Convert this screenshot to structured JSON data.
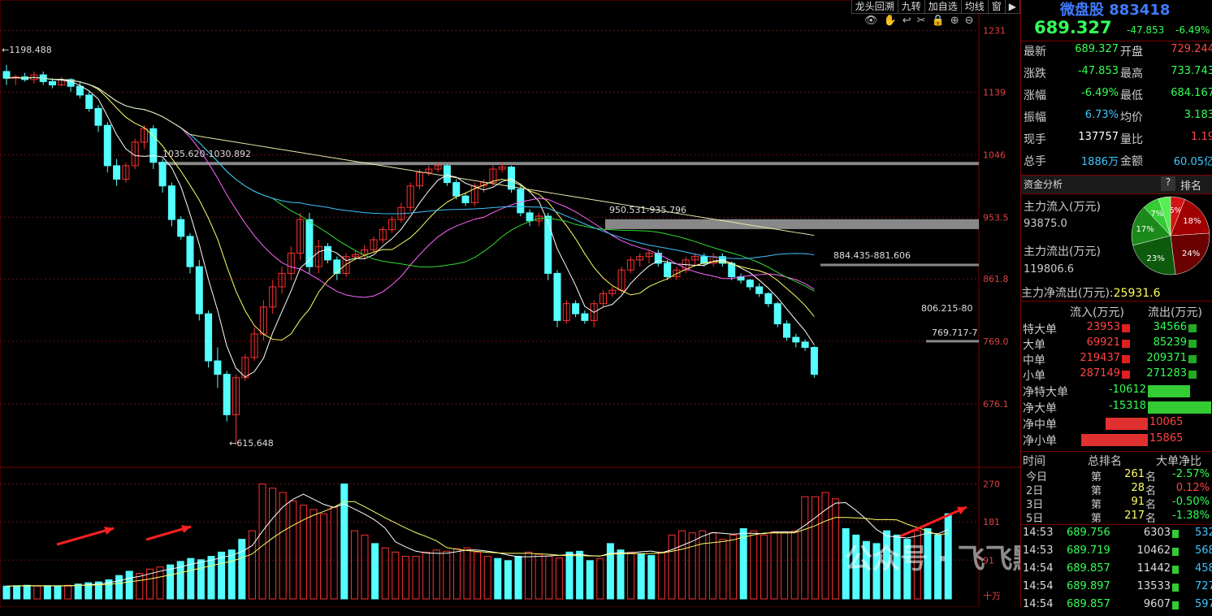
{
  "toolbar": {
    "items": [
      "龙头回溯",
      "九转",
      "加自选",
      "均线",
      "窗",
      "▶"
    ]
  },
  "chart_data": {
    "type": "candlestick",
    "price_axis": {
      "ticks": [
        "1231",
        "1139",
        "1046",
        "953.5",
        "861.8",
        "769.0",
        "676.1"
      ],
      "range": [
        600,
        1240
      ]
    },
    "volume_axis": {
      "ticks": [
        "270",
        "181",
        "91",
        "十万"
      ],
      "range": [
        0,
        290
      ]
    },
    "annotations": {
      "high": "1198.488",
      "low": "615.648",
      "zone1": "1035.620-1030.892",
      "zone2": "950.531-935.796",
      "zone3": "884.435-881.606",
      "zone4": "806.215-80",
      "zone5": "769.717-7"
    },
    "candles": [
      [
        1170,
        1180,
        1150,
        1160
      ],
      [
        1160,
        1165,
        1150,
        1162
      ],
      [
        1162,
        1168,
        1155,
        1158
      ],
      [
        1158,
        1170,
        1152,
        1165
      ],
      [
        1165,
        1170,
        1150,
        1155
      ],
      [
        1155,
        1160,
        1145,
        1150
      ],
      [
        1150,
        1162,
        1148,
        1158
      ],
      [
        1158,
        1160,
        1140,
        1148
      ],
      [
        1148,
        1155,
        1130,
        1135
      ],
      [
        1135,
        1140,
        1110,
        1115
      ],
      [
        1115,
        1120,
        1080,
        1090
      ],
      [
        1090,
        1095,
        1020,
        1030
      ],
      [
        1030,
        1040,
        1000,
        1010
      ],
      [
        1010,
        1035,
        1005,
        1030
      ],
      [
        1030,
        1070,
        1025,
        1065
      ],
      [
        1065,
        1090,
        1055,
        1085
      ],
      [
        1085,
        1090,
        1025,
        1035
      ],
      [
        1035,
        1040,
        990,
        1000
      ],
      [
        1000,
        1005,
        940,
        950
      ],
      [
        950,
        955,
        920,
        925
      ],
      [
        925,
        930,
        870,
        880
      ],
      [
        880,
        890,
        800,
        810
      ],
      [
        810,
        815,
        730,
        740
      ],
      [
        740,
        760,
        700,
        720
      ],
      [
        720,
        725,
        650,
        660
      ],
      [
        660,
        720,
        615,
        715
      ],
      [
        715,
        750,
        710,
        745
      ],
      [
        745,
        790,
        740,
        780
      ],
      [
        780,
        830,
        770,
        820
      ],
      [
        820,
        860,
        810,
        850
      ],
      [
        850,
        880,
        840,
        870
      ],
      [
        870,
        910,
        860,
        900
      ],
      [
        900,
        960,
        890,
        950
      ],
      [
        950,
        960,
        870,
        880
      ],
      [
        880,
        920,
        870,
        910
      ],
      [
        910,
        915,
        885,
        890
      ],
      [
        890,
        895,
        860,
        870
      ],
      [
        870,
        900,
        865,
        895
      ],
      [
        895,
        905,
        890,
        898
      ],
      [
        898,
        912,
        892,
        905
      ],
      [
        905,
        925,
        900,
        920
      ],
      [
        920,
        940,
        915,
        935
      ],
      [
        935,
        955,
        930,
        950
      ],
      [
        950,
        975,
        945,
        968
      ],
      [
        968,
        1005,
        962,
        1000
      ],
      [
        1000,
        1025,
        995,
        1020
      ],
      [
        1020,
        1030,
        1015,
        1025
      ],
      [
        1025,
        1035,
        1020,
        1030
      ],
      [
        1030,
        1032,
        1000,
        1005
      ],
      [
        1005,
        1010,
        980,
        985
      ],
      [
        985,
        990,
        970,
        975
      ],
      [
        975,
        1005,
        970,
        1000
      ],
      [
        1000,
        1010,
        990,
        1005
      ],
      [
        1005,
        1030,
        1000,
        1025
      ],
      [
        1025,
        1035,
        1020,
        1028
      ],
      [
        1028,
        1030,
        990,
        995
      ],
      [
        995,
        1000,
        955,
        960
      ],
      [
        960,
        965,
        940,
        948
      ],
      [
        948,
        960,
        940,
        955
      ],
      [
        955,
        960,
        860,
        870
      ],
      [
        870,
        875,
        790,
        800
      ],
      [
        800,
        830,
        795,
        825
      ],
      [
        825,
        830,
        805,
        810
      ],
      [
        810,
        815,
        795,
        800
      ],
      [
        800,
        830,
        790,
        825
      ],
      [
        825,
        845,
        820,
        840
      ],
      [
        840,
        850,
        835,
        845
      ],
      [
        845,
        880,
        840,
        875
      ],
      [
        875,
        895,
        870,
        890
      ],
      [
        890,
        900,
        880,
        895
      ],
      [
        895,
        905,
        885,
        900
      ],
      [
        900,
        905,
        880,
        885
      ],
      [
        885,
        890,
        860,
        865
      ],
      [
        865,
        880,
        860,
        875
      ],
      [
        875,
        895,
        870,
        890
      ],
      [
        890,
        900,
        880,
        895
      ],
      [
        895,
        900,
        880,
        885
      ],
      [
        885,
        900,
        880,
        895
      ],
      [
        895,
        900,
        880,
        885
      ],
      [
        885,
        888,
        860,
        865
      ],
      [
        865,
        870,
        855,
        860
      ],
      [
        860,
        862,
        845,
        850
      ],
      [
        850,
        855,
        835,
        840
      ],
      [
        840,
        842,
        820,
        825
      ],
      [
        825,
        828,
        790,
        795
      ],
      [
        795,
        800,
        770,
        775
      ],
      [
        775,
        780,
        760,
        768
      ],
      [
        768,
        772,
        755,
        760
      ],
      [
        760,
        762,
        715,
        720
      ]
    ],
    "volumes": [
      [
        30,
        "c"
      ],
      [
        31,
        "c"
      ],
      [
        32,
        "c"
      ],
      [
        30,
        "r"
      ],
      [
        31,
        "c"
      ],
      [
        30,
        "c"
      ],
      [
        32,
        "r"
      ],
      [
        35,
        "c"
      ],
      [
        38,
        "c"
      ],
      [
        40,
        "c"
      ],
      [
        45,
        "c"
      ],
      [
        55,
        "c"
      ],
      [
        65,
        "c"
      ],
      [
        60,
        "r"
      ],
      [
        70,
        "r"
      ],
      [
        75,
        "r"
      ],
      [
        80,
        "c"
      ],
      [
        88,
        "c"
      ],
      [
        95,
        "c"
      ],
      [
        92,
        "c"
      ],
      [
        100,
        "c"
      ],
      [
        110,
        "c"
      ],
      [
        115,
        "c"
      ],
      [
        140,
        "c"
      ],
      [
        160,
        "r"
      ],
      [
        270,
        "r"
      ],
      [
        260,
        "r"
      ],
      [
        250,
        "r"
      ],
      [
        230,
        "r"
      ],
      [
        220,
        "r"
      ],
      [
        210,
        "r"
      ],
      [
        200,
        "r"
      ],
      [
        215,
        "r"
      ],
      [
        270,
        "c"
      ],
      [
        160,
        "r"
      ],
      [
        150,
        "r"
      ],
      [
        130,
        "c"
      ],
      [
        120,
        "r"
      ],
      [
        110,
        "r"
      ],
      [
        100,
        "r"
      ],
      [
        100,
        "r"
      ],
      [
        110,
        "r"
      ],
      [
        115,
        "r"
      ],
      [
        112,
        "r"
      ],
      [
        118,
        "r"
      ],
      [
        120,
        "r"
      ],
      [
        110,
        "r"
      ],
      [
        100,
        "r"
      ],
      [
        95,
        "c"
      ],
      [
        90,
        "c"
      ],
      [
        100,
        "c"
      ],
      [
        110,
        "r"
      ],
      [
        105,
        "r"
      ],
      [
        100,
        "r"
      ],
      [
        96,
        "r"
      ],
      [
        110,
        "c"
      ],
      [
        112,
        "c"
      ],
      [
        90,
        "c"
      ],
      [
        95,
        "r"
      ],
      [
        130,
        "c"
      ],
      [
        115,
        "c"
      ],
      [
        110,
        "r"
      ],
      [
        105,
        "c"
      ],
      [
        102,
        "c"
      ],
      [
        110,
        "r"
      ],
      [
        150,
        "r"
      ],
      [
        160,
        "r"
      ],
      [
        155,
        "r"
      ],
      [
        160,
        "r"
      ],
      [
        155,
        "r"
      ],
      [
        140,
        "r"
      ],
      [
        150,
        "r"
      ],
      [
        165,
        "c"
      ],
      [
        160,
        "r"
      ],
      [
        150,
        "r"
      ],
      [
        158,
        "r"
      ],
      [
        155,
        "r"
      ],
      [
        160,
        "r"
      ],
      [
        240,
        "r"
      ],
      [
        240,
        "r"
      ],
      [
        250,
        "r"
      ],
      [
        235,
        "r"
      ],
      [
        165,
        "c"
      ],
      [
        150,
        "c"
      ],
      [
        135,
        "c"
      ],
      [
        130,
        "c"
      ],
      [
        160,
        "c"
      ],
      [
        150,
        "c"
      ],
      [
        140,
        "c"
      ],
      [
        160,
        "r"
      ],
      [
        165,
        "c"
      ],
      [
        150,
        "c"
      ],
      [
        200,
        "c"
      ]
    ]
  },
  "stock": {
    "name": "微盘股",
    "code": "883418",
    "price": "689.327",
    "change": "-47.853",
    "change_pct": "-6.49%"
  },
  "quotes": [
    {
      "l1": "最新",
      "v1": "689.327",
      "c1": "green",
      "l2": "开盘",
      "v2": "729.244",
      "c2": "red"
    },
    {
      "l1": "涨跌",
      "v1": "-47.853",
      "c1": "green",
      "l2": "最高",
      "v2": "733.743",
      "c2": "green"
    },
    {
      "l1": "涨幅",
      "v1": "-6.49%",
      "c1": "green",
      "l2": "最低",
      "v2": "684.167",
      "c2": "green"
    },
    {
      "l1": "振幅",
      "v1": "6.73%",
      "c1": "cyan",
      "l2": "均价",
      "v2": "3.183",
      "c2": "green"
    },
    {
      "l1": "现手",
      "v1": "137757",
      "c1": "white",
      "l2": "量比",
      "v2": "1.19",
      "c2": "red"
    },
    {
      "l1": "总手",
      "v1": "1886万",
      "c1": "cyan",
      "l2": "金额",
      "v2": "60.05亿",
      "c2": "cyan"
    }
  ],
  "capital": {
    "title": "资金分析",
    "q": "?",
    "rank": "排名",
    "inflow_label": "主力流入(万元)",
    "inflow": "93875.0",
    "outflow_label": "主力流出(万元)",
    "outflow": "119806.6",
    "net_label": "主力净流出(万元):",
    "net": "25931.6",
    "pie": [
      {
        "pct": "6%",
        "value": 6,
        "color": "#d41414"
      },
      {
        "pct": "18%",
        "value": 18,
        "color": "#a00000"
      },
      {
        "pct": "24%",
        "value": 24,
        "color": "#6a0000"
      },
      {
        "pct": "23%",
        "value": 23,
        "color": "#0d5a0d"
      },
      {
        "pct": "17%",
        "value": 17,
        "color": "#1b8a1b"
      },
      {
        "pct": "7%",
        "value": 7,
        "color": "#33cc33"
      },
      {
        "pct": "",
        "value": 5,
        "color": "#55ee55"
      }
    ]
  },
  "flow": {
    "h_in": "流入(万元)",
    "h_out": "流出(万元)",
    "rows": [
      {
        "n": "特大单",
        "i": "23953",
        "o": "34566"
      },
      {
        "n": "大单",
        "i": "69921",
        "o": "85239"
      },
      {
        "n": "中单",
        "i": "219437",
        "o": "209371"
      },
      {
        "n": "小单",
        "i": "287149",
        "o": "271283"
      }
    ]
  },
  "net": [
    {
      "n": "净特大单",
      "v": "-10612",
      "color": "#33cc33",
      "frac": 0.67,
      "side": "r"
    },
    {
      "n": "净大单",
      "v": "-15318",
      "color": "#33cc33",
      "frac": 1.0,
      "side": "r"
    },
    {
      "n": "净中单",
      "v": "10065",
      "color": "#e03030",
      "frac": 0.64,
      "side": "l"
    },
    {
      "n": "净小单",
      "v": "15865",
      "color": "#e03030",
      "frac": 1.0,
      "side": "l"
    }
  ],
  "rank_hdr": {
    "t": "时间",
    "r": "总排名",
    "b": "大单净比"
  },
  "ranks": [
    {
      "d": "今日",
      "p": "第",
      "n": "261",
      "s": "名",
      "v": "-2.57%",
      "c": "green"
    },
    {
      "d": "2日",
      "p": "第",
      "n": "28",
      "s": "名",
      "v": "0.12%",
      "c": "red"
    },
    {
      "d": "3日",
      "p": "第",
      "n": "91",
      "s": "名",
      "v": "-0.50%",
      "c": "green"
    },
    {
      "d": "5日",
      "p": "第",
      "n": "217",
      "s": "名",
      "v": "-1.38%",
      "c": "green"
    }
  ],
  "ticks": [
    {
      "t": "14:53",
      "p": "689.756",
      "v": "6303",
      "e": "532"
    },
    {
      "t": "14:53",
      "p": "689.719",
      "v": "10462",
      "e": "568"
    },
    {
      "t": "14:54",
      "p": "689.857",
      "v": "11442",
      "e": "458"
    },
    {
      "t": "14:54",
      "p": "689.897",
      "v": "13533",
      "e": "727"
    },
    {
      "t": "14:54",
      "p": "689.857",
      "v": "9607",
      "e": "597"
    }
  ],
  "watermark": "公众号 · 飞飞點金"
}
